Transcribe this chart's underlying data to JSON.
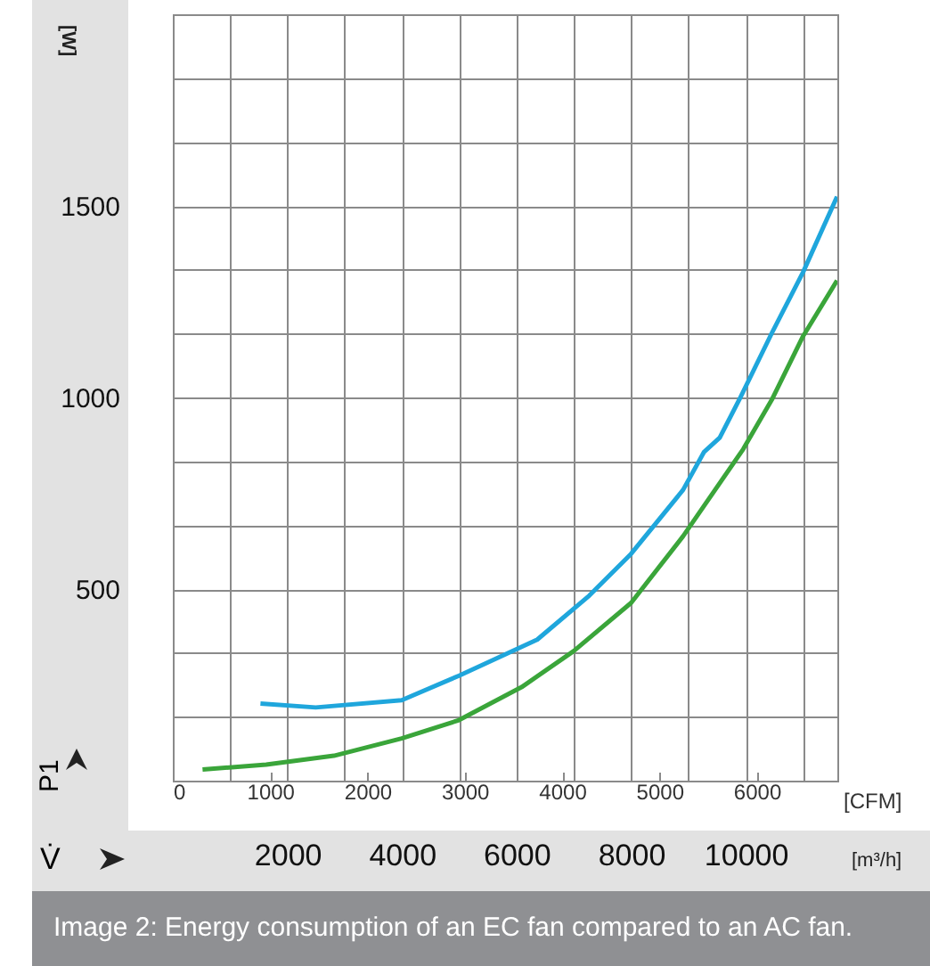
{
  "chart_data": {
    "type": "line",
    "xlabel": "V̇",
    "x2label": "[CFM]",
    "ylabel": "P1",
    "annotations": [
      "[W]",
      "[m³/h]",
      "Image 2: Energy consumption of an EC fan compared to an AC fan."
    ],
    "xlim": [
      0,
      11600
    ],
    "xticks": [
      {
        "value": 0,
        "label": null
      },
      {
        "value": 1000,
        "label": null
      },
      2000,
      {
        "value": 3000,
        "label": null
      },
      4000,
      {
        "value": 5000,
        "label": null
      },
      6000,
      {
        "value": 7000,
        "label": null
      },
      8000,
      {
        "value": 9000,
        "label": null
      },
      10000,
      {
        "value": 11000,
        "label": null
      }
    ],
    "x2lim": [
      0,
      6828
    ],
    "x2ticks": [
      0,
      1000,
      2000,
      3000,
      4000,
      5000,
      6000
    ],
    "ylim": [
      0,
      2000
    ],
    "yticks": [
      {
        "value": 0,
        "label": null
      },
      {
        "value": 166.7,
        "label": null
      },
      {
        "value": 333.3,
        "label": null
      },
      500,
      {
        "value": 666.7,
        "label": null
      },
      {
        "value": 833.3,
        "label": null
      },
      1000,
      {
        "value": 1166.7,
        "label": null
      },
      {
        "value": 1333.3,
        "label": null
      },
      1500,
      {
        "value": 1666.7,
        "label": null
      },
      {
        "value": 1833.3,
        "label": null
      },
      {
        "value": 2000,
        "label": null
      }
    ],
    "grid": true,
    "series": [
      {
        "color": "#1fa6dc",
        "x": [
          1530,
          2494,
          3995,
          4996,
          6361,
          7270,
          8000,
          8908,
          9274,
          9547,
          9910,
          10456,
          11002,
          11594
        ],
        "values": [
          201,
          191,
          210,
          274,
          368,
          483,
          592,
          759,
          858,
          895,
          1001,
          1168,
          1327,
          1524
        ]
      },
      {
        "color": "#3aa53a",
        "x": [
          519,
          1630,
          2812,
          3995,
          4996,
          6088,
          6997,
          8000,
          8908,
          9956,
          10456,
          11002,
          11594
        ],
        "values": [
          29,
          42,
          65,
          110,
          158,
          244,
          338,
          464,
          638,
          865,
          994,
          1160,
          1305
        ]
      }
    ]
  }
}
